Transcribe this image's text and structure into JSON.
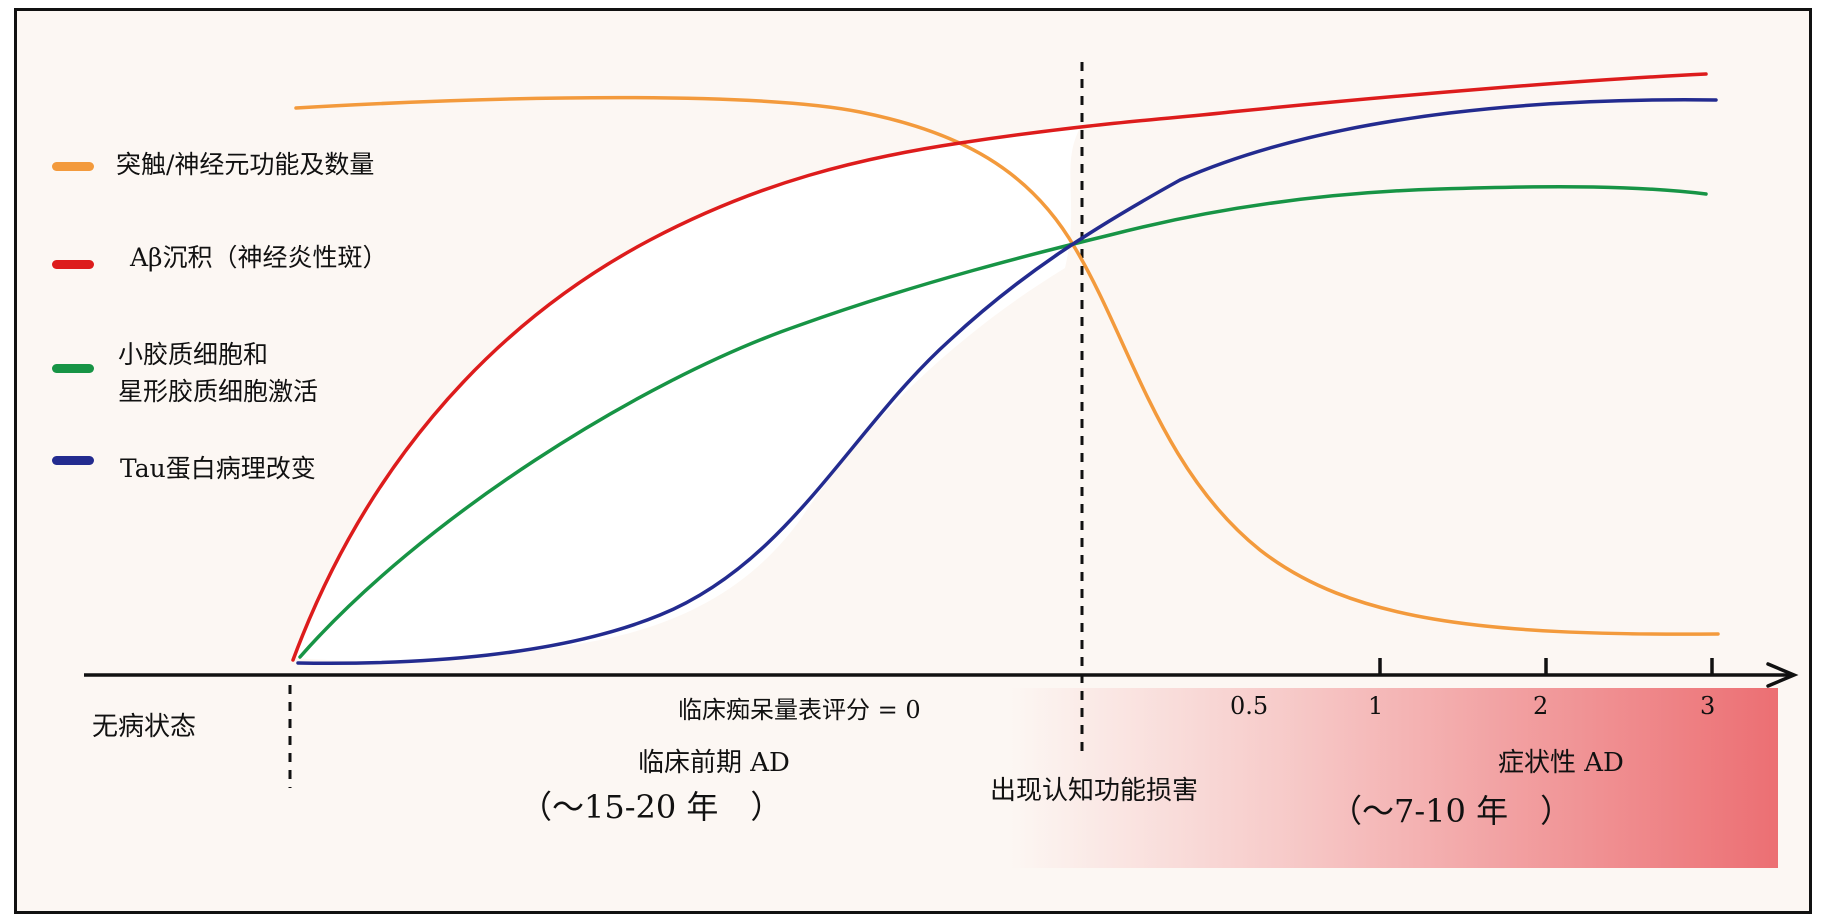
{
  "legend": {
    "synapse": "突触/神经元功能及数量",
    "abeta": "Aβ沉积（神经炎性斑）",
    "glia_line1": "小胶质细胞和",
    "glia_line2": "星形胶质细胞激活",
    "tau": "Tau蛋白病理改变"
  },
  "colors": {
    "synapse": "#f39a3c",
    "abeta": "#dd1c1c",
    "glia": "#179445",
    "tau": "#232b8f",
    "symptomatic_band": "#ec6f73"
  },
  "axis": {
    "cdr_label": "临床痴呆量表评分 = 0",
    "ticks": [
      "0.5",
      "1",
      "2",
      "3"
    ]
  },
  "stages": {
    "healthy": "无病状态",
    "preclinical": "临床前期 AD",
    "preclinical_duration": "（～15-20 年　）",
    "onset": "出现认知功能损害",
    "symptomatic": "症状性 AD",
    "symptomatic_duration": "（～7-10 年　）"
  }
}
